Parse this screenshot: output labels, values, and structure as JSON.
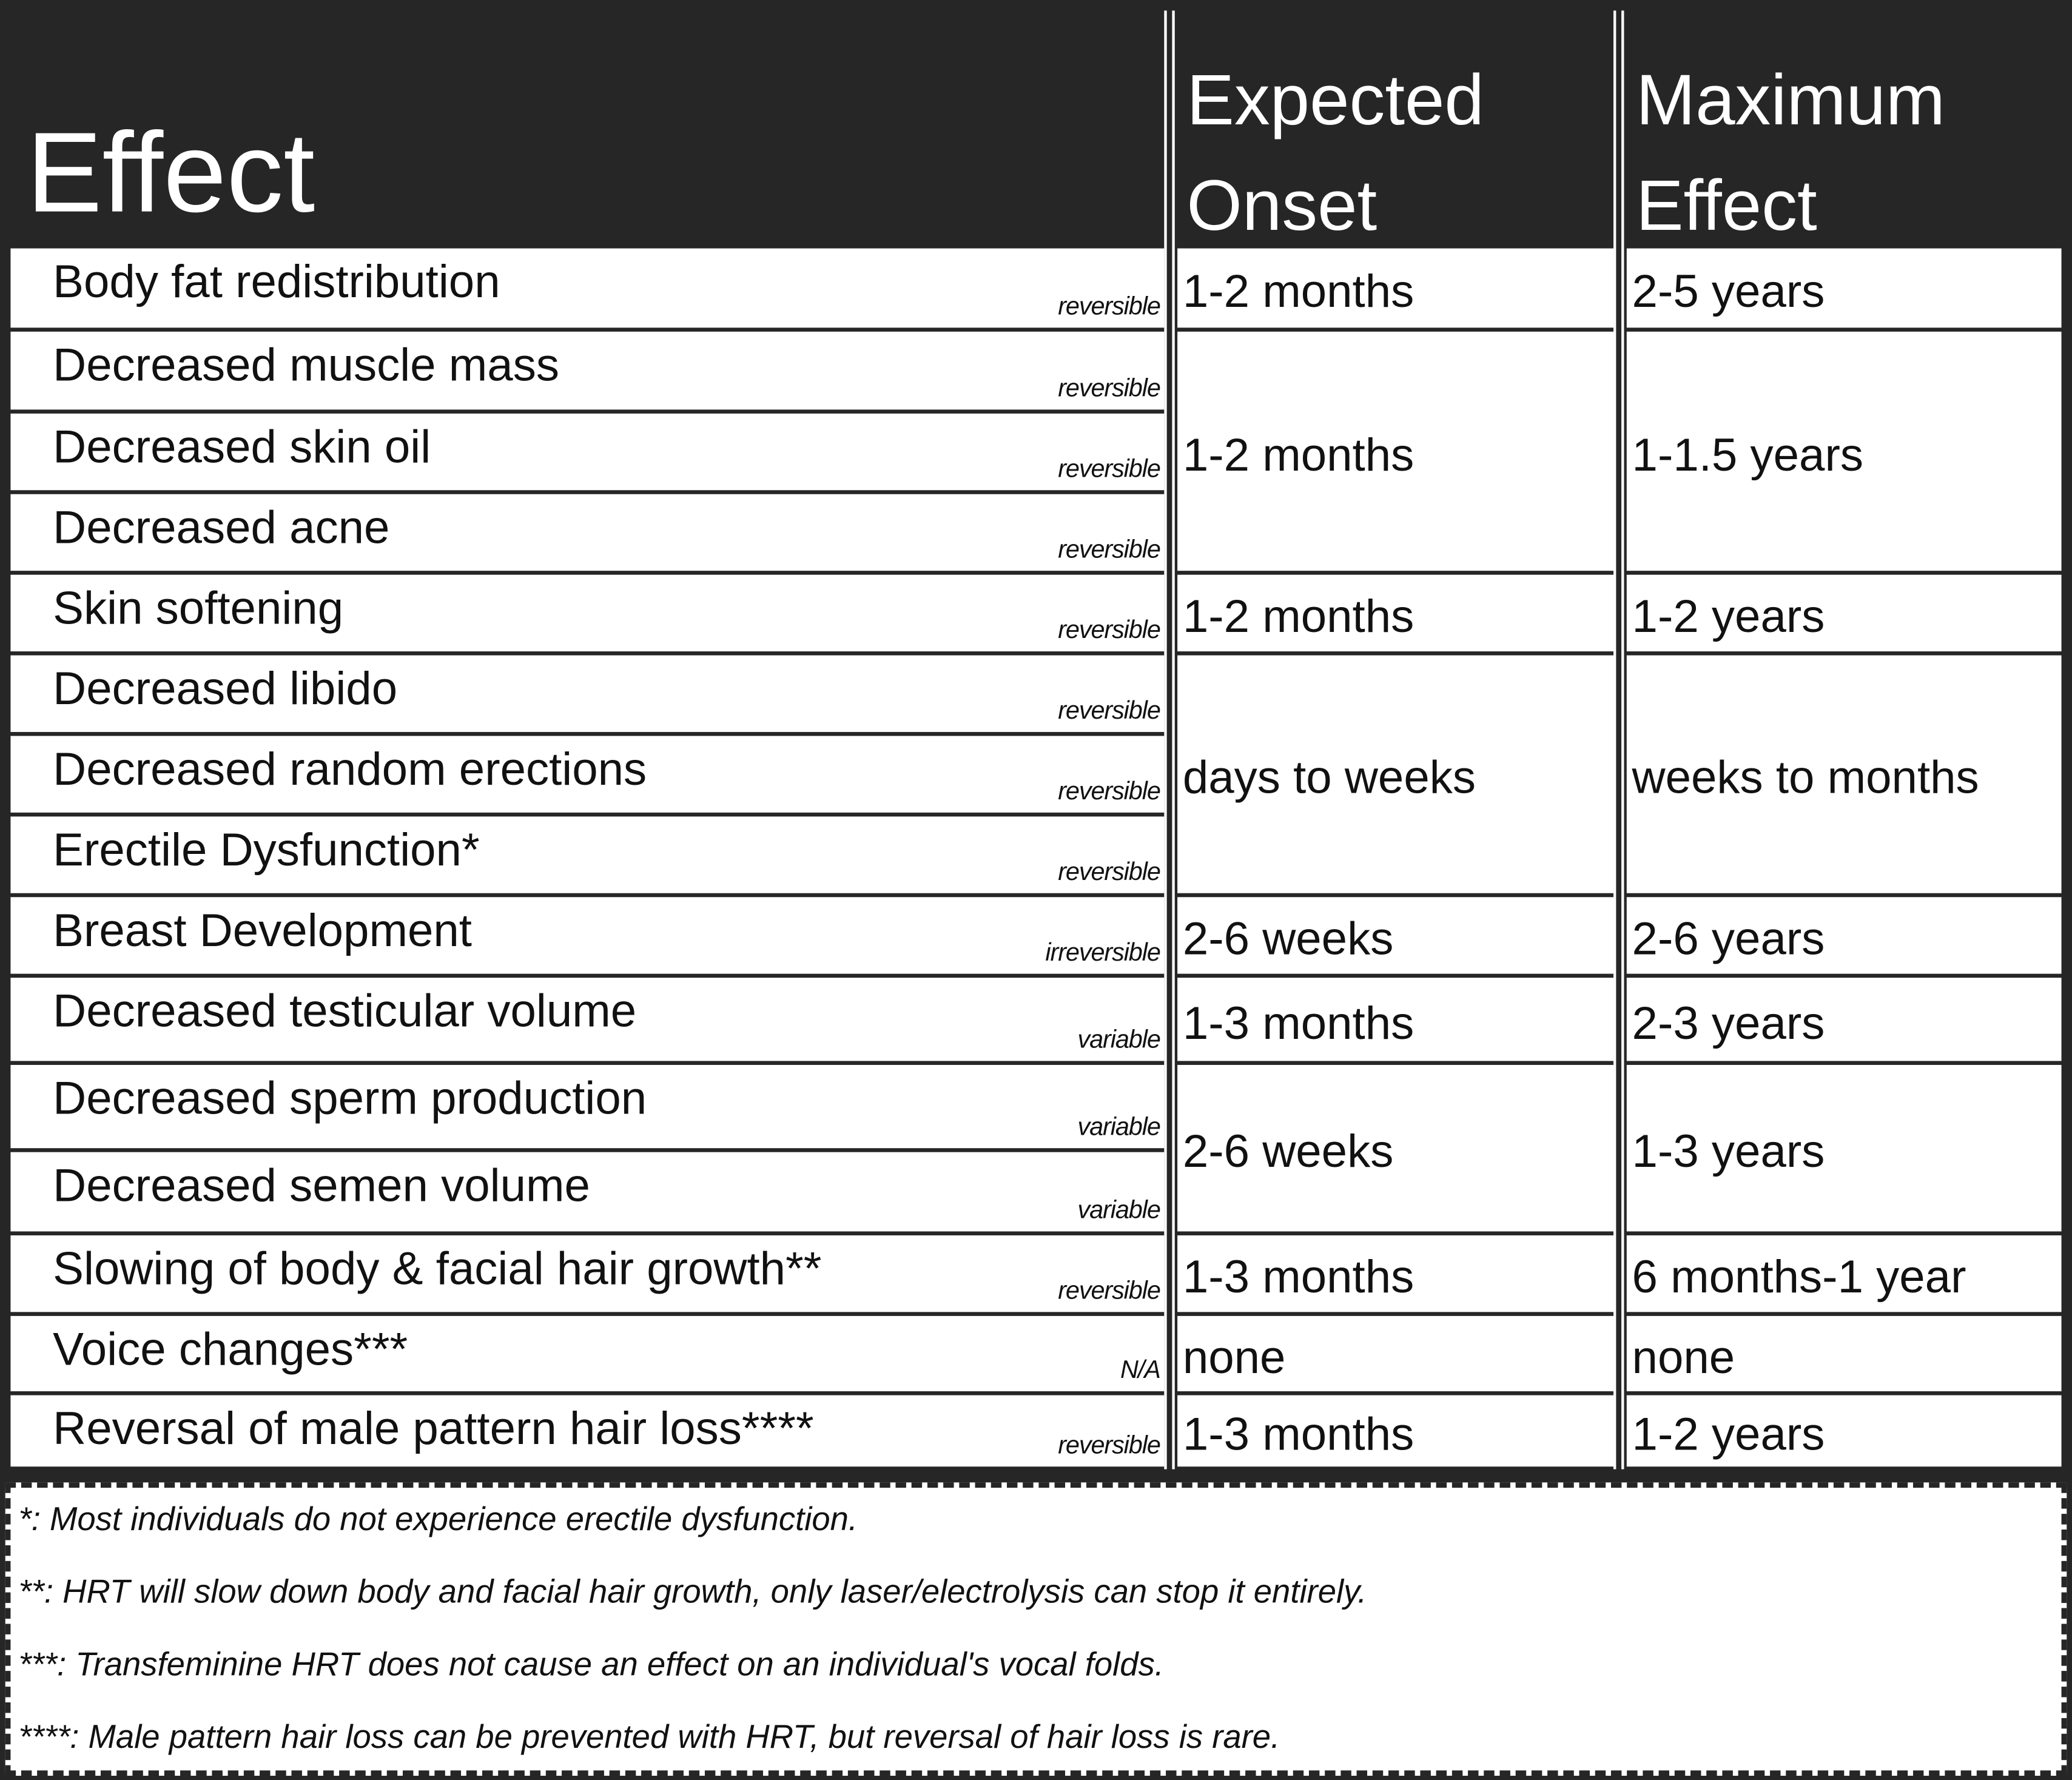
{
  "header": {
    "effect": "Effect",
    "onset_line1": "Expected",
    "onset_line2": "Onset",
    "max_line1": "Maximum",
    "max_line2": "Effect"
  },
  "rows": [
    {
      "effect": "Body fat redistribution",
      "tag": "reversible"
    },
    {
      "effect": "Decreased muscle mass",
      "tag": "reversible"
    },
    {
      "effect": "Decreased skin oil",
      "tag": "reversible"
    },
    {
      "effect": "Decreased acne",
      "tag": "reversible"
    },
    {
      "effect": "Skin softening",
      "tag": "reversible"
    },
    {
      "effect": "Decreased libido",
      "tag": "reversible"
    },
    {
      "effect": "Decreased random erections",
      "tag": "reversible"
    },
    {
      "effect": "Erectile Dysfunction*",
      "tag": "reversible"
    },
    {
      "effect": "Breast Development",
      "tag": "irreversible"
    },
    {
      "effect": "Decreased testicular volume",
      "tag": "variable"
    },
    {
      "effect": "Decreased sperm production",
      "tag": "variable"
    },
    {
      "effect": "Decreased semen volume",
      "tag": "variable"
    },
    {
      "effect": "Slowing of body & facial hair growth**",
      "tag": "reversible"
    },
    {
      "effect": "Voice changes***",
      "tag": "N/A"
    },
    {
      "effect": "Reversal of male pattern hair loss****",
      "tag": "reversible"
    }
  ],
  "groups": [
    {
      "rows": [
        0
      ],
      "onset": "1-2 months",
      "max": "2-5 years"
    },
    {
      "rows": [
        1,
        2,
        3
      ],
      "onset": "1-2 months",
      "max": "1-1.5 years"
    },
    {
      "rows": [
        4
      ],
      "onset": "1-2 months",
      "max": "1-2 years"
    },
    {
      "rows": [
        5,
        6,
        7
      ],
      "onset": "days to weeks",
      "max": "weeks to months"
    },
    {
      "rows": [
        8
      ],
      "onset": "2-6 weeks",
      "max": "2-6 years"
    },
    {
      "rows": [
        9
      ],
      "onset": "1-3 months",
      "max": "2-3 years"
    },
    {
      "rows": [
        10,
        11
      ],
      "onset": "2-6 weeks",
      "max": "1-3 years"
    },
    {
      "rows": [
        12
      ],
      "onset": "1-3 months",
      "max": "6 months-1 year"
    },
    {
      "rows": [
        13
      ],
      "onset": "none",
      "max": "none"
    },
    {
      "rows": [
        14
      ],
      "onset": "1-3 months",
      "max": "1-2 years"
    }
  ],
  "footnotes": [
    "*: Most individuals do not experience erectile dysfunction.",
    "**: HRT will slow down body and facial hair growth, only laser/electrolysis can stop it entirely.",
    "***: Transfeminine HRT does not cause an effect on an individual's vocal folds.",
    "****: Male pattern hair loss can be prevented with HRT, but reversal of hair loss is rare."
  ]
}
